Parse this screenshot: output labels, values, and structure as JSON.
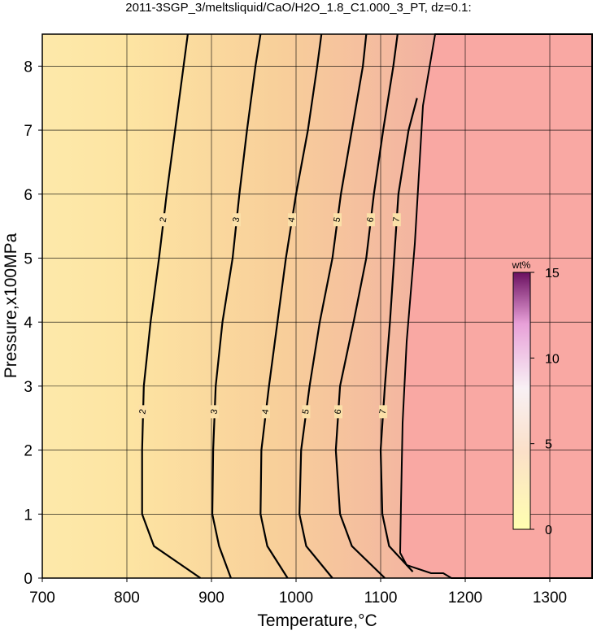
{
  "chart_data": {
    "type": "contour",
    "title": "2011-3SGP_3/meltsliquid/CaO/H2O_1.8_C1.000_3_PT, dz=0.1:",
    "x_label": "Temperature,°C",
    "y_label": "Pressure,x100MPa",
    "xlim": [
      700,
      1350
    ],
    "ylim": [
      0,
      8.5
    ],
    "xticks": [
      700,
      800,
      900,
      1000,
      1100,
      1200,
      1300
    ],
    "yticks": [
      0,
      1,
      2,
      3,
      4,
      5,
      6,
      7,
      8
    ],
    "grid": true,
    "contours": [
      {
        "level": 2,
        "y": [
          0,
          0.5,
          1,
          2,
          3,
          4,
          5,
          6,
          7,
          8,
          8.5
        ],
        "x": [
          887,
          832,
          818,
          818,
          820,
          828,
          838,
          847,
          857,
          867,
          872
        ]
      },
      {
        "level": 3,
        "y": [
          0,
          0.5,
          1,
          2,
          3,
          4,
          5,
          6,
          7,
          8,
          8.5
        ],
        "x": [
          923,
          909,
          901,
          902,
          905,
          913,
          925,
          933,
          942,
          952,
          958
        ]
      },
      {
        "level": 4,
        "y": [
          0,
          0.5,
          1,
          2,
          3,
          4,
          5,
          6,
          7,
          8,
          8.5
        ],
        "x": [
          990,
          966,
          958,
          959,
          968,
          978,
          988,
          1000,
          1014,
          1025,
          1030
        ]
      },
      {
        "level": 5,
        "y": [
          0,
          0.5,
          1,
          2,
          3,
          4,
          5,
          6,
          7,
          8,
          8.5
        ],
        "x": [
          1043,
          1012,
          1004,
          1006,
          1016,
          1028,
          1043,
          1053,
          1066,
          1079,
          1083
        ]
      },
      {
        "level": 6,
        "y": [
          0,
          0.5,
          1,
          2,
          3,
          4,
          5,
          6,
          7,
          8,
          8.5
        ],
        "x": [
          1105,
          1066,
          1052,
          1047,
          1052,
          1068,
          1083,
          1092,
          1103,
          1115,
          1120
        ]
      },
      {
        "level": 7,
        "y": [
          0.1,
          0.5,
          1,
          2,
          3,
          4,
          5,
          6,
          7,
          7.5
        ],
        "x": [
          1138,
          1110,
          1102,
          1100,
          1105,
          1111,
          1116,
          1121,
          1133,
          1143
        ]
      }
    ],
    "colorbar": {
      "label": "wt%",
      "lim": [
        0,
        15
      ],
      "ticks": [
        0,
        5,
        10,
        15
      ]
    }
  }
}
